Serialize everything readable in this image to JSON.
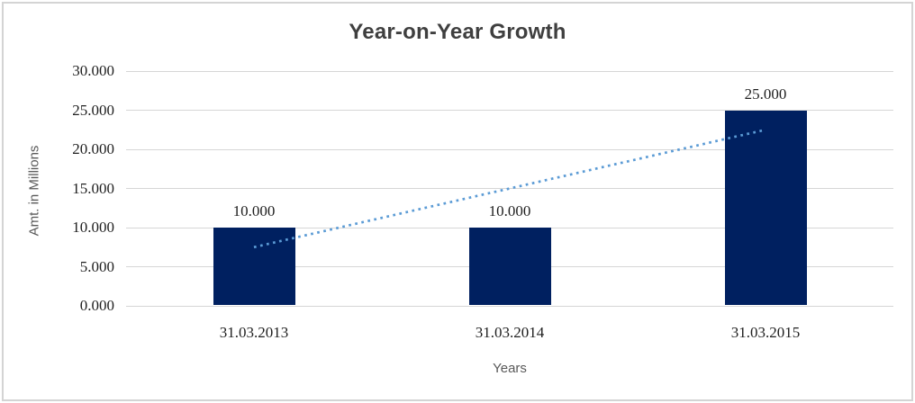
{
  "chart_data": {
    "type": "bar",
    "title": "Year-on-Year Growth",
    "xlabel": "Years",
    "ylabel": "Amt. in Millions",
    "categories": [
      "31.03.2013",
      "31.03.2014",
      "31.03.2015"
    ],
    "values": [
      10,
      10,
      25
    ],
    "data_labels": [
      "10.000",
      "10.000",
      "25.000"
    ],
    "ylim": [
      0,
      30
    ],
    "ytick_step": 5,
    "ytick_labels": [
      "0.000",
      "5.000",
      "10.000",
      "15.000",
      "20.000",
      "25.000",
      "30.000"
    ],
    "grid": true,
    "legend": "none",
    "trendline": {
      "type": "linear",
      "style": "dotted",
      "values": [
        7.5,
        15,
        22.5
      ]
    },
    "colors": {
      "bar": "#002060",
      "trendline": "#5B9BD5",
      "gridline": "#D6D6D6",
      "axis_line": "#D6D6D6",
      "border": "#D4D4D4",
      "title_text": "#3F3F3F",
      "tick_text": "#1F1F1F",
      "axis_title_text": "#595959",
      "background": "#FFFFFF"
    }
  }
}
